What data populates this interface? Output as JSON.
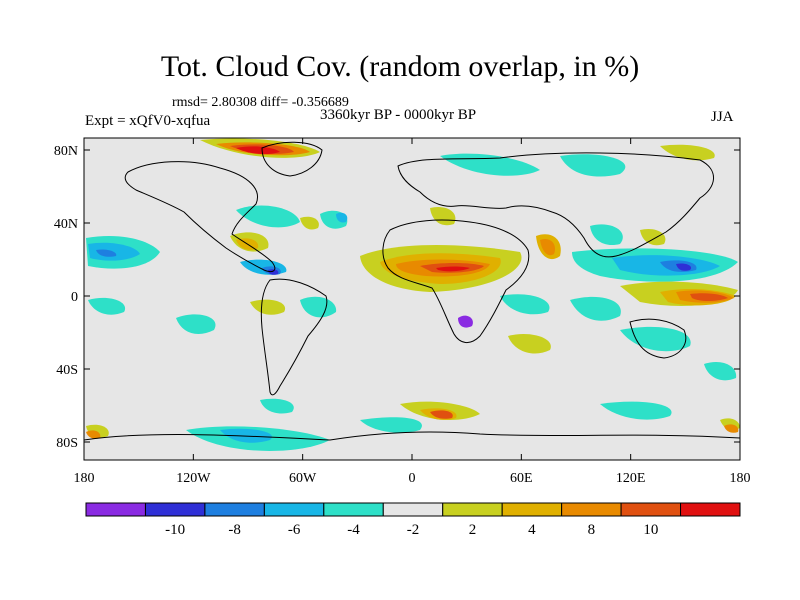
{
  "title": "Tot. Cloud Cov. (random overlap, in %)",
  "stats": "rmsd= 2.80308 diff= -0.356689",
  "period": "3360kyr BP - 0000kyr BP",
  "experiment": "Expt = xQfV0-xqfua",
  "season": "JJA",
  "map": {
    "background_color": "#e6e6e6",
    "x_ticks": [
      "180",
      "120W",
      "60W",
      "0",
      "60E",
      "120E",
      "180"
    ],
    "y_ticks": [
      "80N",
      "40N",
      "0",
      "40S",
      "80S"
    ]
  },
  "colorbar": {
    "colors": [
      "#8a2be2",
      "#2f2fd6",
      "#1e7fe0",
      "#18b6e6",
      "#2ee0c8",
      "#e6e6e6",
      "#c8d020",
      "#e0b000",
      "#e88a00",
      "#e05010",
      "#e01010"
    ],
    "labels": [
      "-10",
      "-8",
      "-6",
      "-4",
      "-2",
      "2",
      "4",
      "8",
      "10"
    ]
  }
}
